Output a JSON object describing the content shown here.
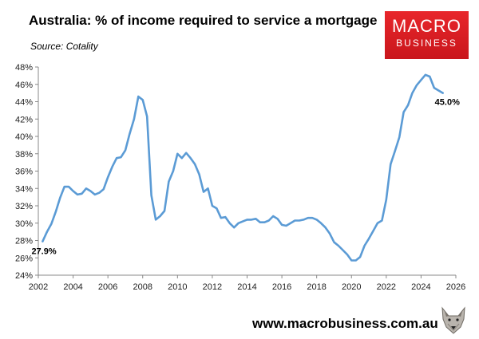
{
  "header": {
    "title": "Australia: % of income required to service a mortgage",
    "source": "Source: Cotality"
  },
  "logo": {
    "line1": "MACRO",
    "line2": "BUSINESS",
    "color": "#d71e24"
  },
  "footer": {
    "url": "www.macrobusiness.com.au",
    "mascot_icon": "wolf-icon"
  },
  "chart_data": {
    "type": "line",
    "title": "Australia: % of income required to service a mortgage",
    "xlabel": "",
    "ylabel": "",
    "xlim": [
      2002,
      2026
    ],
    "ylim": [
      24,
      48
    ],
    "x_ticks": [
      "2002",
      "2004",
      "2006",
      "2008",
      "2010",
      "2012",
      "2014",
      "2016",
      "2018",
      "2020",
      "2022",
      "2024",
      "2026"
    ],
    "y_ticks": [
      "24%",
      "26%",
      "28%",
      "30%",
      "32%",
      "34%",
      "36%",
      "38%",
      "40%",
      "42%",
      "44%",
      "46%",
      "48%"
    ],
    "grid": false,
    "series": [
      {
        "color": "#5b9bd5",
        "x": [
          2002.25,
          2002.5,
          2002.75,
          2003.0,
          2003.25,
          2003.5,
          2003.75,
          2004.0,
          2004.25,
          2004.5,
          2004.75,
          2005.0,
          2005.25,
          2005.5,
          2005.75,
          2006.0,
          2006.25,
          2006.5,
          2006.75,
          2007.0,
          2007.25,
          2007.5,
          2007.75,
          2008.0,
          2008.25,
          2008.5,
          2008.75,
          2009.0,
          2009.25,
          2009.5,
          2009.75,
          2010.0,
          2010.25,
          2010.5,
          2010.75,
          2011.0,
          2011.25,
          2011.5,
          2011.75,
          2012.0,
          2012.25,
          2012.5,
          2012.75,
          2013.0,
          2013.25,
          2013.5,
          2013.75,
          2014.0,
          2014.25,
          2014.5,
          2014.75,
          2015.0,
          2015.25,
          2015.5,
          2015.75,
          2016.0,
          2016.25,
          2016.5,
          2016.75,
          2017.0,
          2017.25,
          2017.5,
          2017.75,
          2018.0,
          2018.25,
          2018.5,
          2018.75,
          2019.0,
          2019.25,
          2019.5,
          2019.75,
          2020.0,
          2020.25,
          2020.5,
          2020.75,
          2021.0,
          2021.25,
          2021.5,
          2021.75,
          2022.0,
          2022.25,
          2022.5,
          2022.75,
          2023.0,
          2023.25,
          2023.5,
          2023.75,
          2024.0,
          2024.25,
          2024.5,
          2024.75,
          2025.0,
          2025.25
        ],
        "values": [
          27.9,
          29.0,
          29.9,
          31.3,
          32.9,
          34.2,
          34.2,
          33.7,
          33.3,
          33.4,
          34.0,
          33.7,
          33.3,
          33.5,
          33.9,
          35.3,
          36.5,
          37.5,
          37.6,
          38.4,
          40.3,
          42.0,
          44.6,
          44.2,
          42.3,
          33.2,
          30.4,
          30.8,
          31.4,
          34.8,
          36.0,
          38.0,
          37.5,
          38.1,
          37.5,
          36.8,
          35.6,
          33.6,
          34.0,
          32.0,
          31.7,
          30.6,
          30.7,
          30.0,
          29.5,
          30.0,
          30.2,
          30.4,
          30.4,
          30.5,
          30.1,
          30.1,
          30.3,
          30.8,
          30.5,
          29.8,
          29.7,
          30.0,
          30.3,
          30.3,
          30.4,
          30.6,
          30.6,
          30.4,
          30.0,
          29.5,
          28.8,
          27.8,
          27.4,
          26.9,
          26.4,
          25.7,
          25.7,
          26.1,
          27.4,
          28.2,
          29.1,
          30.0,
          30.3,
          32.7,
          36.8,
          38.3,
          39.9,
          42.8,
          43.6,
          45.0,
          45.9,
          46.5,
          47.1,
          46.9,
          45.6,
          45.3,
          45.0
        ],
        "labels": [
          {
            "index": 0,
            "text": "27.9%"
          },
          {
            "index": 92,
            "text": "45.0%"
          }
        ]
      }
    ]
  }
}
